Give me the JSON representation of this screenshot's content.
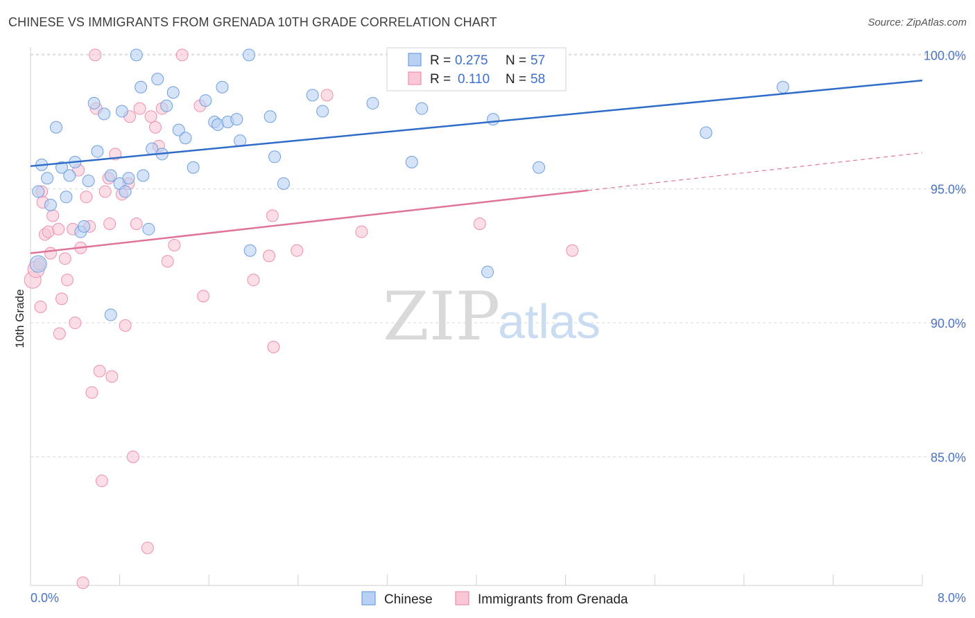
{
  "title": "CHINESE VS IMMIGRANTS FROM GRENADA 10TH GRADE CORRELATION CHART",
  "source": "Source: ZipAtlas.com",
  "watermark": {
    "zip": "ZIP",
    "atlas": "atlas"
  },
  "colors": {
    "chinese_fill": "#b8d1f2",
    "chinese_stroke": "#6e9fe0",
    "chinese_line": "#2f6cc9",
    "grenada_fill": "#f9c7d6",
    "grenada_stroke": "#ee8fae",
    "grenada_line": "#e0739a",
    "axis_text": "#4a72c4",
    "grid": "#d8d8d8"
  },
  "legend": {
    "rows": [
      {
        "r_label": "R =",
        "r_value": "0.275",
        "n_label": "N =",
        "n_value": "57"
      },
      {
        "r_label": "R =",
        "r_value": "0.110",
        "n_label": "N =",
        "n_value": "58"
      }
    ]
  },
  "bottom_legend": [
    "Chinese",
    "Immigrants from Grenada"
  ],
  "chart_data": {
    "type": "scatter",
    "title": "CHINESE VS IMMIGRANTS FROM GRENADA 10TH GRADE CORRELATION CHART",
    "xlabel": "",
    "ylabel": "10th Grade",
    "xlim": [
      0,
      8
    ],
    "ylim": [
      80.2,
      100.5
    ],
    "x_tick_labels": [
      "0.0%",
      "8.0%"
    ],
    "y_ticks": [
      100,
      95,
      90,
      85
    ],
    "y_tick_labels": [
      "100.0%",
      "95.0%",
      "90.0%",
      "85.0%"
    ],
    "grid": true,
    "legend_position": "top-center",
    "series": [
      {
        "name": "Chinese",
        "R": 0.275,
        "N": 57,
        "trend": {
          "x": [
            0,
            8
          ],
          "y": [
            95.85,
            99.05
          ],
          "dashed_from": null
        },
        "points": [
          [
            0.07,
            92.2
          ],
          [
            0.07,
            94.9
          ],
          [
            0.1,
            95.9
          ],
          [
            0.15,
            95.4
          ],
          [
            0.18,
            94.4
          ],
          [
            0.23,
            97.3
          ],
          [
            0.28,
            95.8
          ],
          [
            0.32,
            94.7
          ],
          [
            0.35,
            95.5
          ],
          [
            0.4,
            96.0
          ],
          [
            0.45,
            93.4
          ],
          [
            0.48,
            93.6
          ],
          [
            0.52,
            95.3
          ],
          [
            0.57,
            98.2
          ],
          [
            0.6,
            96.4
          ],
          [
            0.66,
            97.8
          ],
          [
            0.72,
            95.5
          ],
          [
            0.72,
            90.3
          ],
          [
            0.8,
            95.2
          ],
          [
            0.82,
            97.9
          ],
          [
            0.85,
            94.9
          ],
          [
            0.88,
            95.4
          ],
          [
            0.95,
            100.0
          ],
          [
            0.99,
            98.8
          ],
          [
            1.01,
            95.5
          ],
          [
            1.06,
            93.5
          ],
          [
            1.09,
            96.5
          ],
          [
            1.14,
            99.1
          ],
          [
            1.18,
            96.3
          ],
          [
            1.22,
            98.1
          ],
          [
            1.28,
            98.6
          ],
          [
            1.33,
            97.2
          ],
          [
            1.39,
            96.9
          ],
          [
            1.46,
            95.8
          ],
          [
            1.57,
            98.3
          ],
          [
            1.65,
            97.5
          ],
          [
            1.68,
            97.4
          ],
          [
            1.72,
            98.8
          ],
          [
            1.77,
            97.5
          ],
          [
            1.85,
            97.6
          ],
          [
            1.88,
            96.8
          ],
          [
            1.96,
            100.0
          ],
          [
            1.97,
            92.7
          ],
          [
            2.15,
            97.7
          ],
          [
            2.19,
            96.2
          ],
          [
            2.27,
            95.2
          ],
          [
            2.53,
            98.5
          ],
          [
            2.62,
            97.9
          ],
          [
            3.07,
            98.2
          ],
          [
            3.25,
            100.0
          ],
          [
            3.42,
            96.0
          ],
          [
            3.51,
            98.0
          ],
          [
            4.1,
            91.9
          ],
          [
            4.15,
            97.6
          ],
          [
            4.56,
            95.8
          ],
          [
            6.06,
            97.1
          ],
          [
            6.75,
            98.8
          ]
        ]
      },
      {
        "name": "Immigrants from Grenada",
        "R": 0.11,
        "N": 58,
        "trend": {
          "x": [
            0,
            8
          ],
          "y": [
            92.6,
            96.35
          ],
          "dashed_from": 5.0
        },
        "points": [
          [
            0.02,
            91.6
          ],
          [
            0.05,
            92.0
          ],
          [
            0.08,
            92.2
          ],
          [
            0.09,
            90.6
          ],
          [
            0.1,
            94.9
          ],
          [
            0.11,
            94.5
          ],
          [
            0.13,
            93.3
          ],
          [
            0.16,
            93.4
          ],
          [
            0.18,
            92.6
          ],
          [
            0.2,
            94.0
          ],
          [
            0.25,
            93.5
          ],
          [
            0.26,
            89.6
          ],
          [
            0.28,
            90.9
          ],
          [
            0.31,
            92.4
          ],
          [
            0.33,
            91.6
          ],
          [
            0.38,
            93.5
          ],
          [
            0.4,
            90.0
          ],
          [
            0.43,
            95.7
          ],
          [
            0.45,
            92.8
          ],
          [
            0.47,
            80.3
          ],
          [
            0.5,
            94.7
          ],
          [
            0.53,
            93.6
          ],
          [
            0.55,
            87.4
          ],
          [
            0.58,
            100.0
          ],
          [
            0.59,
            98.0
          ],
          [
            0.62,
            88.2
          ],
          [
            0.64,
            84.1
          ],
          [
            0.67,
            94.9
          ],
          [
            0.7,
            95.4
          ],
          [
            0.71,
            93.7
          ],
          [
            0.73,
            88.0
          ],
          [
            0.76,
            96.3
          ],
          [
            0.82,
            94.8
          ],
          [
            0.85,
            89.9
          ],
          [
            0.88,
            95.2
          ],
          [
            0.89,
            97.7
          ],
          [
            0.92,
            85.0
          ],
          [
            0.95,
            93.7
          ],
          [
            0.98,
            98.0
          ],
          [
            1.05,
            81.6
          ],
          [
            1.08,
            97.7
          ],
          [
            1.12,
            97.3
          ],
          [
            1.15,
            96.6
          ],
          [
            1.18,
            98.0
          ],
          [
            1.23,
            92.3
          ],
          [
            1.29,
            92.9
          ],
          [
            1.36,
            100.0
          ],
          [
            1.52,
            98.1
          ],
          [
            1.55,
            91.0
          ],
          [
            2.0,
            91.6
          ],
          [
            2.14,
            92.5
          ],
          [
            2.17,
            94.0
          ],
          [
            2.18,
            89.1
          ],
          [
            2.39,
            92.7
          ],
          [
            2.66,
            98.5
          ],
          [
            2.97,
            93.4
          ],
          [
            4.03,
            93.7
          ],
          [
            4.86,
            92.7
          ]
        ]
      }
    ]
  }
}
